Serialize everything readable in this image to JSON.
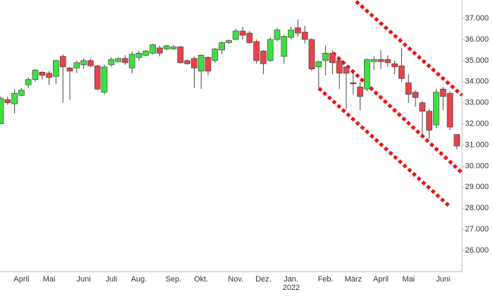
{
  "chart_data": {
    "type": "candlestick",
    "categories": [
      null,
      null,
      null,
      "April",
      null,
      null,
      null,
      "Mai",
      null,
      null,
      null,
      null,
      "Juni",
      null,
      null,
      null,
      "Juli",
      null,
      null,
      null,
      "Aug.",
      null,
      null,
      null,
      null,
      "Sep.",
      null,
      null,
      null,
      "Okt.",
      null,
      null,
      null,
      null,
      "Nov.",
      null,
      null,
      null,
      "Dez.",
      null,
      null,
      null,
      "Jan.",
      null,
      null,
      null,
      null,
      "Feb.",
      null,
      null,
      null,
      "März",
      null,
      null,
      null,
      "April",
      null,
      null,
      null,
      "Mai",
      null,
      null,
      null,
      null,
      "Juni",
      null,
      null
    ],
    "year_label": "2022",
    "open": [
      32000,
      33150,
      32950,
      33350,
      33850,
      34100,
      34450,
      34400,
      34250,
      35200,
      34650,
      34650,
      34800,
      35000,
      34750,
      33500,
      34800,
      34950,
      35100,
      34650,
      35150,
      35250,
      35350,
      35600,
      35550,
      35550,
      35650,
      35000,
      35100,
      34500,
      35150,
      35000,
      35500,
      35850,
      36000,
      36400,
      36300,
      35900,
      35450,
      35000,
      36000,
      35200,
      36100,
      36550,
      36350,
      36000,
      34700,
      35000,
      35350,
      35000,
      34700,
      33950,
      33750,
      33650,
      34950,
      35050,
      35050,
      34850,
      34750,
      33950,
      33500,
      33000,
      32600,
      31950,
      33650,
      33450,
      31500
    ],
    "high": [
      33300,
      33300,
      33650,
      33700,
      34200,
      34600,
      34500,
      34500,
      35050,
      35300,
      34700,
      35000,
      35100,
      35100,
      34800,
      34800,
      35150,
      35150,
      35250,
      35450,
      35450,
      35500,
      35800,
      35700,
      35750,
      35750,
      35700,
      35050,
      35200,
      35300,
      35200,
      35600,
      35900,
      36000,
      36500,
      36600,
      36400,
      36000,
      35500,
      36100,
      36550,
      36200,
      36600,
      36950,
      36650,
      36050,
      35000,
      35700,
      35500,
      35050,
      34750,
      34500,
      34000,
      35100,
      35200,
      35500,
      35250,
      35000,
      35600,
      34350,
      33600,
      33100,
      32700,
      33650,
      33750,
      33550,
      31500
    ],
    "low": [
      32000,
      32900,
      32500,
      33300,
      33700,
      34000,
      34100,
      33850,
      33900,
      33000,
      33150,
      34400,
      34600,
      34700,
      33600,
      33400,
      34700,
      34900,
      34800,
      34400,
      35000,
      35200,
      35300,
      35200,
      35500,
      35500,
      34850,
      34800,
      33700,
      33650,
      34300,
      34900,
      35300,
      35800,
      35950,
      36000,
      35800,
      34850,
      34350,
      34950,
      35900,
      34850,
      36000,
      36150,
      35800,
      34500,
      33700,
      34300,
      34350,
      33650,
      32700,
      33400,
      32650,
      33550,
      34550,
      34600,
      34700,
      34350,
      34000,
      33000,
      32800,
      31400,
      31300,
      31800,
      32650,
      31700,
      30800
    ],
    "close": [
      33200,
      33000,
      33450,
      33600,
      34100,
      34550,
      34300,
      34200,
      35000,
      34700,
      34500,
      34900,
      35000,
      34750,
      33650,
      34700,
      35050,
      35100,
      34900,
      35300,
      35350,
      35450,
      35750,
      35350,
      35700,
      35650,
      34900,
      34850,
      34650,
      35250,
      34500,
      35550,
      35850,
      35950,
      36400,
      36200,
      35850,
      35000,
      34850,
      36000,
      36450,
      36150,
      36450,
      36300,
      36000,
      34600,
      34950,
      35350,
      34900,
      34400,
      34400,
      33900,
      33300,
      35050,
      35050,
      34950,
      34900,
      34700,
      34150,
      33400,
      33250,
      32600,
      31700,
      33500,
      33300,
      31850,
      30950
    ],
    "up_color": "#3fdf3f",
    "down_color": "#e8434a",
    "ylim": [
      25000,
      37870
    ],
    "yticks": [
      {
        "value": 26000,
        "label": "26.000"
      },
      {
        "value": 27000,
        "label": "27.000"
      },
      {
        "value": 28000,
        "label": "28.000"
      },
      {
        "value": 29000,
        "label": "29.000"
      },
      {
        "value": 30000,
        "label": "30.000"
      },
      {
        "value": 31000,
        "label": "31.000"
      },
      {
        "value": 32000,
        "label": "32.000"
      },
      {
        "value": 33000,
        "label": "33.000"
      },
      {
        "value": 34000,
        "label": "34.000"
      },
      {
        "value": 35000,
        "label": "35.000"
      },
      {
        "value": 36000,
        "label": "36.000"
      },
      {
        "value": 37000,
        "label": "37.000"
      }
    ]
  }
}
